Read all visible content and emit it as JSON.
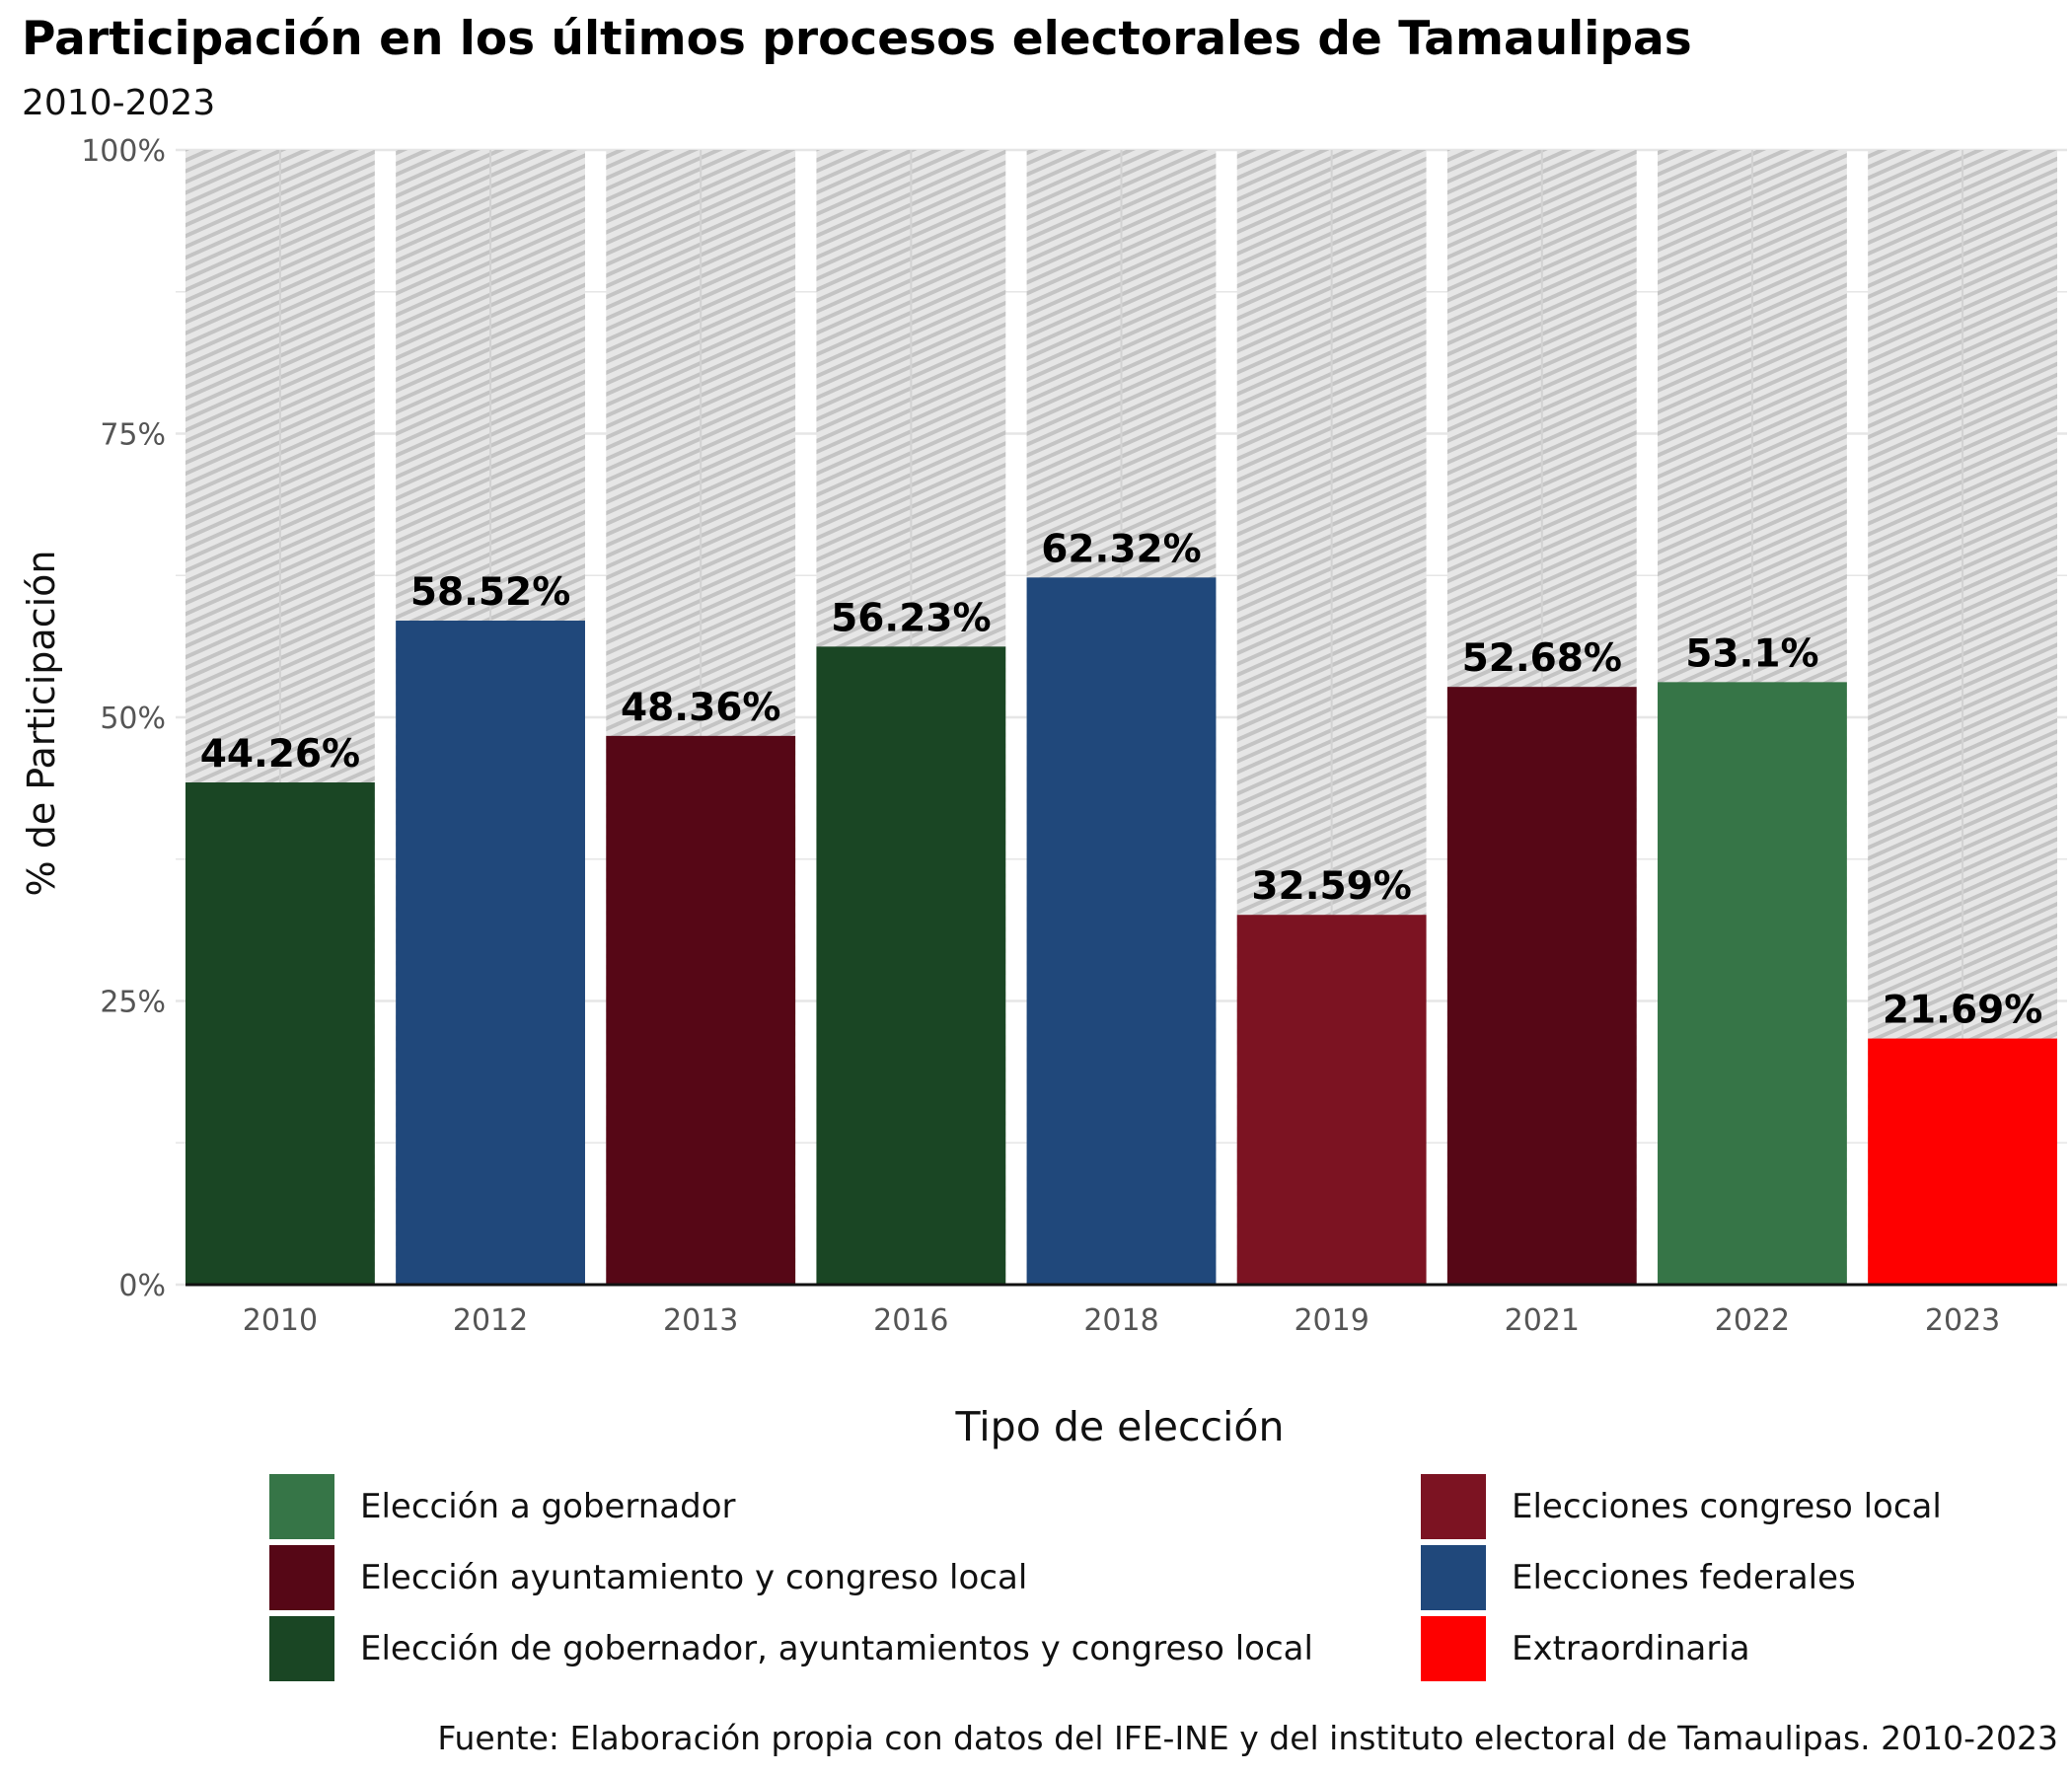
{
  "title": "Participación en los últimos procesos electorales de Tamaulipas",
  "subtitle": "2010-2023",
  "caption": "Fuente: Elaboración propia con datos del IFE-INE y del instituto electoral de Tamaulipas. 2010-2023",
  "legend": {
    "title": "Tipo de elección",
    "items": [
      {
        "label": "Elección a gobernador",
        "color": "#367547"
      },
      {
        "label": "Elección ayuntamiento y congreso local",
        "color": "#560716"
      },
      {
        "label": "Elección de gobernador, ayuntamientos y congreso local",
        "color": "#1a4624"
      },
      {
        "label": "Elecciones congreso local",
        "color": "#7c1322"
      },
      {
        "label": "Elecciones federales",
        "color": "#20487b"
      },
      {
        "label": "Extraordinaria",
        "color": "#fe0000"
      }
    ]
  },
  "chart_data": {
    "type": "bar",
    "title": "Participación en los últimos procesos electorales de Tamaulipas",
    "subtitle": "2010-2023",
    "xlabel": "",
    "ylabel": "% de Participación",
    "categories": [
      "2010",
      "2012",
      "2013",
      "2016",
      "2018",
      "2019",
      "2021",
      "2022",
      "2023"
    ],
    "values": [
      44.26,
      58.52,
      48.36,
      56.23,
      62.32,
      32.59,
      52.68,
      53.1,
      21.69
    ],
    "labels": [
      "44.26%",
      "58.52%",
      "48.36%",
      "56.23%",
      "62.32%",
      "32.59%",
      "52.68%",
      "53.1%",
      "21.69%"
    ],
    "types": [
      "Elección de gobernador, ayuntamientos y congreso local",
      "Elecciones federales",
      "Elección ayuntamiento y congreso local",
      "Elección de gobernador, ayuntamientos y congreso local",
      "Elecciones federales",
      "Elecciones congreso local",
      "Elección ayuntamiento y congreso local",
      "Elección a gobernador",
      "Extraordinaria"
    ],
    "ylim": [
      0,
      100
    ],
    "yticks": [
      0,
      25,
      50,
      75,
      100
    ],
    "ytick_labels": [
      "0%",
      "25%",
      "50%",
      "75%",
      "100%"
    ],
    "background_bars": "100% hatched grey",
    "grid": true,
    "legend_position": "bottom"
  }
}
